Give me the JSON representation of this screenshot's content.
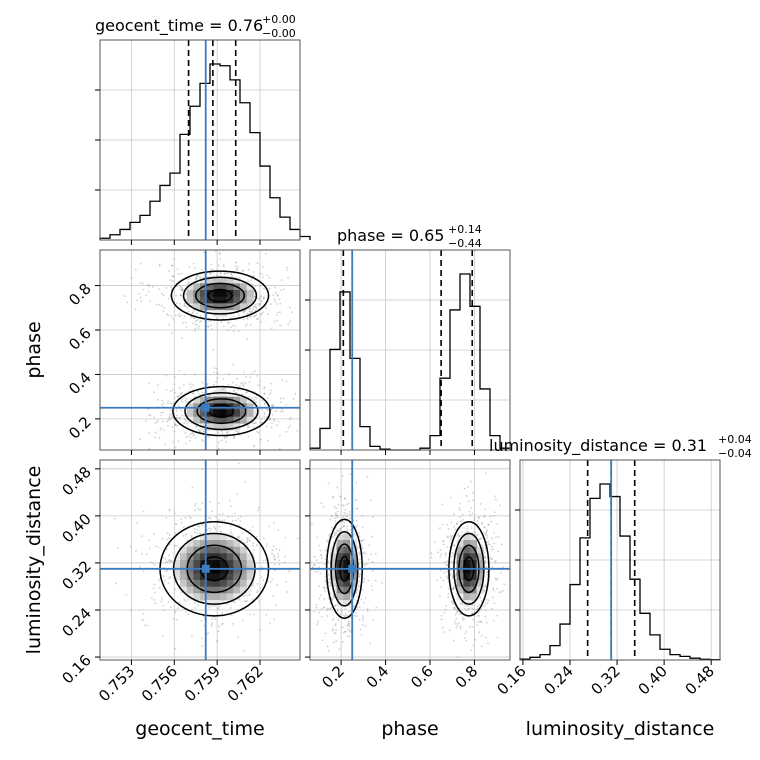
{
  "chart_data": {
    "type": "corner",
    "parameters": [
      "geocent_time",
      "phase",
      "luminosity_distance"
    ],
    "truths": {
      "geocent_time": 0.7582,
      "phase": 0.25,
      "luminosity_distance": 0.31
    },
    "truth_color": "#3b7bbf",
    "ranges": {
      "geocent_time": [
        0.7508,
        0.7648
      ],
      "phase": [
        0.06,
        0.96
      ],
      "luminosity_distance": [
        0.155,
        0.495
      ]
    },
    "ticks": {
      "geocent_time": {
        "values": [
          0.753,
          0.756,
          0.759,
          0.762
        ],
        "labels": [
          "0.753",
          "0.756",
          "0.759",
          "0.762"
        ]
      },
      "phase": {
        "values": [
          0.2,
          0.4,
          0.6,
          0.8
        ],
        "labels": [
          "0.2",
          "0.4",
          "0.6",
          "0.8"
        ]
      },
      "luminosity_distance": {
        "values": [
          0.16,
          0.24,
          0.32,
          0.4,
          0.48
        ],
        "labels": [
          "0.16",
          "0.24",
          "0.32",
          "0.40",
          "0.48"
        ]
      }
    },
    "titles": [
      {
        "param": "geocent_time",
        "label": "geocent_time = 0.76",
        "sup": "+0.00",
        "sub": "−0.00"
      },
      {
        "param": "phase",
        "label": "phase = 0.65",
        "sup": "+0.14",
        "sub": "−0.44"
      },
      {
        "param": "luminosity_distance",
        "label": "luminosity_distance = 0.31",
        "sup": "+0.04",
        "sub": "−0.04"
      }
    ],
    "histograms": {
      "geocent_time": {
        "quantiles": [
          0.757,
          0.7587,
          0.7603
        ],
        "bins_start": 0.7508,
        "bin_width": 0.0007,
        "counts": [
          0.01,
          0.03,
          0.06,
          0.1,
          0.14,
          0.22,
          0.31,
          0.38,
          0.6,
          0.76,
          0.89,
          1.0,
          0.99,
          0.91,
          0.78,
          0.61,
          0.42,
          0.24,
          0.13,
          0.06,
          0.02
        ]
      },
      "phase": {
        "quantiles": [
          0.21,
          0.65,
          0.79
        ],
        "bins_start": 0.06,
        "bin_width": 0.045,
        "counts": [
          0.01,
          0.12,
          0.56,
          0.88,
          0.51,
          0.13,
          0.02,
          0.005,
          0.0,
          0.0,
          0.0,
          0.01,
          0.08,
          0.4,
          0.78,
          0.98,
          0.8,
          0.34,
          0.08,
          0.01
        ]
      },
      "luminosity_distance": {
        "quantiles": [
          0.27,
          0.31,
          0.35
        ],
        "bins_start": 0.155,
        "bin_width": 0.017,
        "counts": [
          0.005,
          0.015,
          0.03,
          0.08,
          0.2,
          0.42,
          0.68,
          0.9,
          0.98,
          0.91,
          0.69,
          0.45,
          0.26,
          0.14,
          0.06,
          0.03,
          0.02,
          0.01,
          0.004,
          0.002
        ]
      }
    },
    "density_blobs": {
      "phase_vs_geocent_time": [
        {
          "x": 0.7592,
          "y": 0.755,
          "sx": 0.0017,
          "sy": 0.055,
          "w": 1.0
        },
        {
          "x": 0.7593,
          "y": 0.235,
          "sx": 0.0017,
          "sy": 0.055,
          "w": 1.0
        }
      ],
      "luminosity_distance_vs_geocent_time": [
        {
          "x": 0.7588,
          "y": 0.31,
          "sx": 0.0019,
          "sy": 0.04,
          "w": 1.0
        }
      ],
      "luminosity_distance_vs_phase": [
        {
          "x": 0.215,
          "y": 0.31,
          "sx": 0.04,
          "sy": 0.042,
          "w": 1.0
        },
        {
          "x": 0.775,
          "y": 0.31,
          "sx": 0.045,
          "sy": 0.04,
          "w": 1.0
        }
      ]
    }
  }
}
